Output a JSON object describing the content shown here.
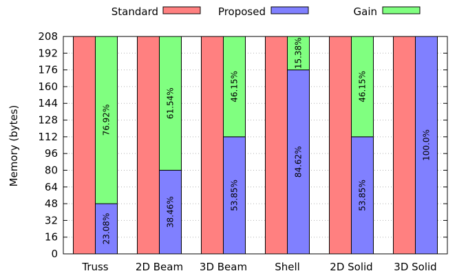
{
  "chart_data": {
    "type": "bar",
    "stacked_pair": true,
    "categories": [
      "Truss",
      "2D Beam",
      "3D Beam",
      "Shell",
      "2D Solid",
      "3D Solid"
    ],
    "ylabel": "Memory (bytes)",
    "xlabel": "",
    "ylim": [
      0,
      208
    ],
    "yticks": [
      0,
      16,
      32,
      48,
      64,
      80,
      96,
      112,
      128,
      144,
      160,
      176,
      192,
      208
    ],
    "grid": true,
    "legend_position": "top",
    "series": [
      {
        "name": "Standard",
        "color": "#ff8080",
        "values": [
          208,
          208,
          208,
          208,
          208,
          208
        ]
      },
      {
        "name": "Proposed",
        "color": "#8080ff",
        "values": [
          48,
          80,
          112,
          176,
          112,
          208
        ],
        "labels": [
          "23.08%",
          "38.46%",
          "53.85%",
          "84.62%",
          "53.85%",
          "100.0%"
        ]
      },
      {
        "name": "Gain",
        "color": "#80ff80",
        "values": [
          160,
          128,
          96,
          32,
          96,
          0
        ],
        "labels": [
          "76.92%",
          "61.54%",
          "46.15%",
          "15.38%",
          "46.15%",
          ""
        ]
      }
    ]
  }
}
